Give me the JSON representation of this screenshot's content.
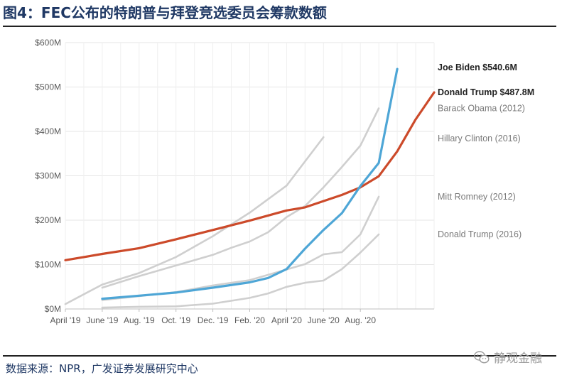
{
  "figure": {
    "title": "图4：FEC公布的特朗普与拜登竞选委员会筹款数额",
    "source": "数据来源：NPR，广发证券发展研究中心",
    "watermark": "静观金融"
  },
  "chart_data": {
    "type": "line",
    "title": "",
    "xlabel": "",
    "ylabel": "",
    "unit": "USD millions",
    "x_tick_labels": [
      "April '19",
      "June '19",
      "Aug. '19",
      "Oct. '19",
      "Dec. '19",
      "Feb. '20",
      "April '20",
      "June '20",
      "Aug. '20"
    ],
    "y_tick_labels": [
      "$0M",
      "$100M",
      "$200M",
      "$300M",
      "$400M",
      "$500M",
      "$600M"
    ],
    "ylim": [
      0,
      600
    ],
    "grid": true,
    "colors": {
      "Joe Biden": "#4ea6d6",
      "Donald Trump": "#cc4a2a",
      "historical": "#cfcfcf"
    },
    "series": [
      {
        "name": "Hillary Clinton (2016)",
        "label": "Hillary Clinton (2016)",
        "style": "gray",
        "points": [
          [
            0,
            11
          ],
          [
            2,
            55
          ],
          [
            4,
            81
          ],
          [
            6,
            117
          ],
          [
            8,
            164
          ],
          [
            10,
            217
          ],
          [
            12,
            278
          ],
          [
            14,
            387
          ]
        ]
      },
      {
        "name": "Barack Obama (2012)",
        "label": "Barack Obama (2012)",
        "style": "gray",
        "points": [
          [
            2,
            48
          ],
          [
            4,
            74
          ],
          [
            6,
            98
          ],
          [
            8,
            122
          ],
          [
            9,
            138
          ],
          [
            10,
            152
          ],
          [
            11,
            173
          ],
          [
            12,
            207
          ],
          [
            13,
            232
          ],
          [
            14,
            274
          ],
          [
            15,
            320
          ],
          [
            16,
            368
          ],
          [
            17,
            452
          ]
        ]
      },
      {
        "name": "Mitt Romney (2012)",
        "label": "Mitt Romney (2012)",
        "style": "gray",
        "points": [
          [
            2,
            20
          ],
          [
            4,
            29
          ],
          [
            6,
            38
          ],
          [
            8,
            53
          ],
          [
            10,
            65
          ],
          [
            11,
            77
          ],
          [
            12,
            89
          ],
          [
            13,
            101
          ],
          [
            14,
            123
          ],
          [
            15,
            128
          ],
          [
            16,
            168
          ],
          [
            17,
            253
          ]
        ]
      },
      {
        "name": "Donald Trump (2016)",
        "label": "Donald Trump (2016)",
        "style": "gray",
        "points": [
          [
            2,
            3
          ],
          [
            4,
            5
          ],
          [
            6,
            6
          ],
          [
            8,
            12
          ],
          [
            10,
            25
          ],
          [
            11,
            35
          ],
          [
            12,
            50
          ],
          [
            13,
            59
          ],
          [
            14,
            64
          ],
          [
            15,
            90
          ],
          [
            16,
            127
          ],
          [
            17,
            168
          ]
        ]
      },
      {
        "name": "Donald Trump",
        "label": "Donald Trump $487.8M",
        "style": "trump",
        "points": [
          [
            0,
            110
          ],
          [
            2,
            124
          ],
          [
            4,
            137
          ],
          [
            6,
            157
          ],
          [
            8,
            178
          ],
          [
            10,
            199
          ],
          [
            12,
            222
          ],
          [
            13,
            229
          ],
          [
            14,
            243
          ],
          [
            15,
            257
          ],
          [
            16,
            274
          ],
          [
            17,
            299
          ],
          [
            18,
            355
          ],
          [
            19,
            427
          ],
          [
            20,
            487.8
          ]
        ]
      },
      {
        "name": "Joe Biden",
        "label": "Joe Biden $540.6M",
        "style": "biden",
        "points": [
          [
            2,
            23
          ],
          [
            4,
            30
          ],
          [
            6,
            37
          ],
          [
            8,
            48
          ],
          [
            10,
            60
          ],
          [
            11,
            70
          ],
          [
            12,
            90
          ],
          [
            13,
            136
          ],
          [
            14,
            178
          ],
          [
            15,
            216
          ],
          [
            16,
            277
          ],
          [
            17,
            329
          ],
          [
            18,
            540.6
          ]
        ]
      }
    ]
  }
}
